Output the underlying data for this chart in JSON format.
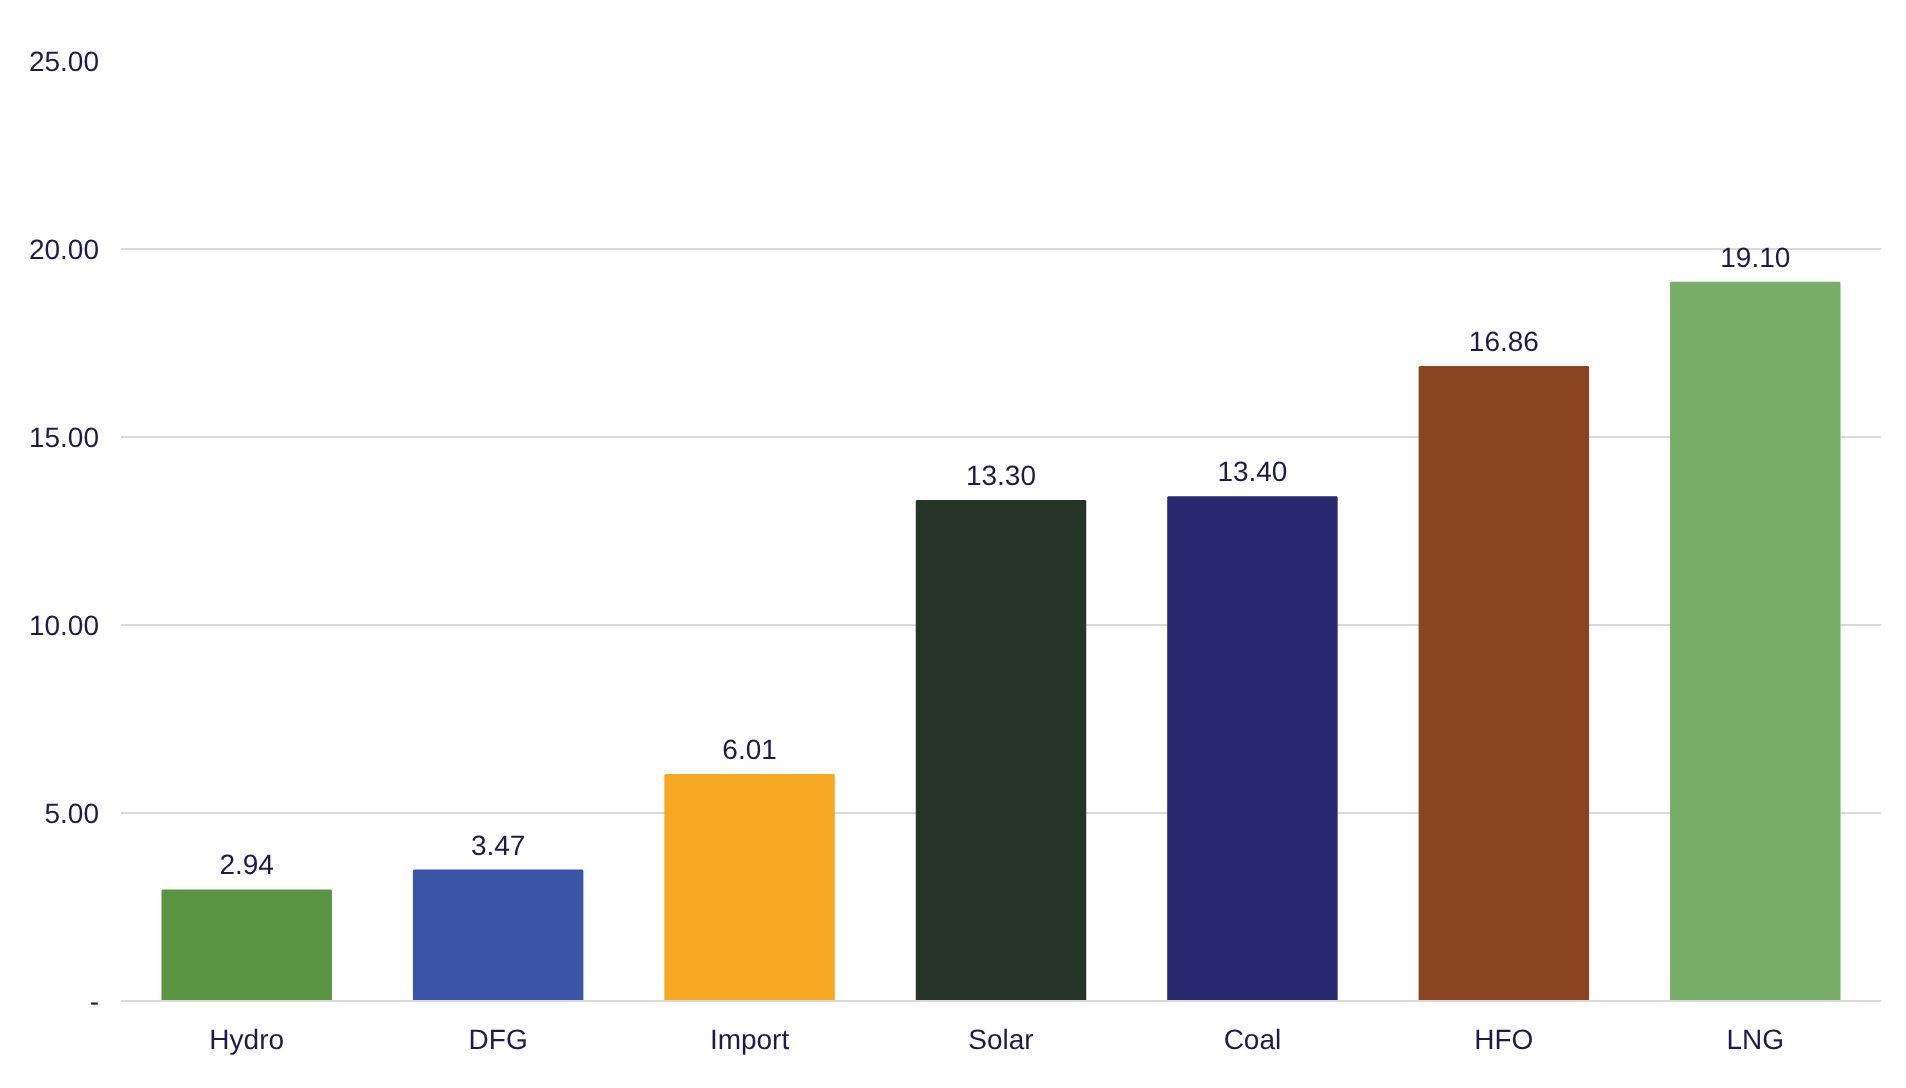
{
  "chart_data": {
    "type": "bar",
    "categories": [
      "Hydro",
      "DFG",
      "Import",
      "Solar",
      "Coal",
      "HFO",
      "LNG"
    ],
    "values": [
      2.94,
      3.47,
      6.01,
      13.3,
      13.4,
      16.86,
      19.1
    ],
    "colors": [
      "#5a9443",
      "#3a55a5",
      "#f7a823",
      "#253528",
      "#27286e",
      "#8a4420",
      "#77ad66"
    ],
    "value_labels": [
      "2.94",
      "3.47",
      "6.01",
      "13.30",
      "13.40",
      "16.86",
      "19.10"
    ],
    "ylim": [
      0,
      25
    ],
    "yticks": [
      {
        "value": 0,
        "label": "-"
      },
      {
        "value": 5,
        "label": "5.00"
      },
      {
        "value": 10,
        "label": "10.00"
      },
      {
        "value": 15,
        "label": "15.00"
      },
      {
        "value": 20,
        "label": "20.00"
      },
      {
        "value": 25,
        "label": "25.00"
      }
    ],
    "grid": "y"
  }
}
